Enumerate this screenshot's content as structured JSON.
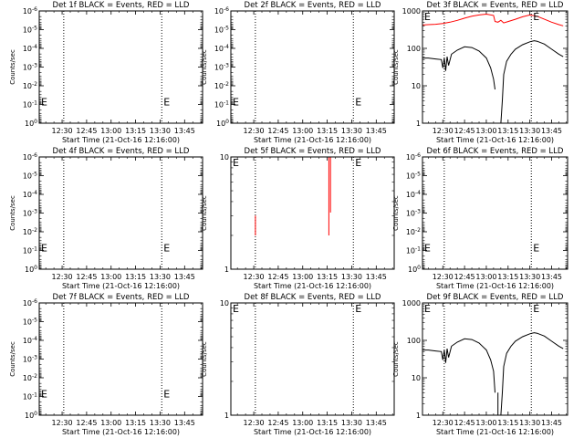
{
  "chart_data": [
    {
      "type": "line",
      "title": "Det 1f BLACK = Events, RED = LLD",
      "xlabel": "Start Time (21-Oct-16 12:16:00)",
      "ylabel": "Counts/sec",
      "log_y": true,
      "xlim": [
        "12:16",
        "13:56"
      ],
      "ylim": [
        1,
        1e-06
      ],
      "ytick_labels": [
        "10^0",
        "10^-1",
        "10^-2",
        "10^-3",
        "10^-4",
        "10^-5",
        "10^-6"
      ],
      "xtick_labels": [
        "12:30",
        "12:45",
        "13:00",
        "13:15",
        "13:30",
        "13:45"
      ],
      "vlines": [
        "12:31",
        "13:31"
      ],
      "markers": [
        {
          "text": "E",
          "x": "12:16",
          "y": 0.07
        },
        {
          "text": "E",
          "x": "13:31",
          "y": 0.07
        }
      ],
      "series": []
    },
    {
      "type": "line",
      "title": "Det 2f BLACK = Events, RED = LLD",
      "xlabel": "Start Time (21-Oct-16 12:16:00)",
      "ylabel": "Counts/sec",
      "log_y": true,
      "xlim": [
        "12:16",
        "13:56"
      ],
      "ylim": [
        1,
        1e-06
      ],
      "ytick_labels": [
        "10^0",
        "10^-1",
        "10^-2",
        "10^-3",
        "10^-4",
        "10^-5",
        "10^-6"
      ],
      "xtick_labels": [
        "12:30",
        "12:45",
        "13:00",
        "13:15",
        "13:30",
        "13:45"
      ],
      "vlines": [
        "12:31",
        "13:31"
      ],
      "markers": [
        {
          "text": "E",
          "x": "12:16",
          "y": 0.07
        },
        {
          "text": "E",
          "x": "13:31",
          "y": 0.07
        }
      ],
      "series": []
    },
    {
      "type": "line",
      "title": "Det 3f BLACK = Events, RED = LLD",
      "xlabel": "Start Time (21-Oct-16 12:16:00)",
      "ylabel": "Counts/sec",
      "log_y": true,
      "xlim": [
        "12:16",
        "13:56"
      ],
      "ylim": [
        1,
        1000
      ],
      "ytick_labels": [
        "1",
        "10",
        "100",
        "1000"
      ],
      "xtick_labels": [
        "12:30",
        "12:45",
        "13:00",
        "13:15",
        "13:30",
        "13:45"
      ],
      "vlines": [
        "12:31",
        "13:31"
      ],
      "markers": [
        {
          "text": "E",
          "x": "12:16",
          "y": 1000
        },
        {
          "text": "E",
          "x": "13:31",
          "y": 1000
        }
      ],
      "series": [
        {
          "color": "#ff0000",
          "segments": [
            {
              "x": [
                "12:16",
                "12:20",
                "12:25",
                "12:30",
                "12:35",
                "12:40",
                "12:45",
                "12:50",
                "12:55",
                "13:00",
                "13:05",
                "13:06",
                "13:08",
                "13:10",
                "13:12",
                "13:15",
                "13:20",
                "13:25",
                "13:30",
                "13:35",
                "13:40",
                "13:45",
                "13:50",
                "13:53"
              ],
              "y": [
                420,
                430,
                440,
                460,
                500,
                560,
                640,
                720,
                780,
                820,
                760,
                520,
                500,
                560,
                480,
                520,
                600,
                700,
                780,
                720,
                600,
                500,
                430,
                400
              ]
            }
          ]
        },
        {
          "color": "#000000",
          "segments": [
            {
              "x": [
                "12:16",
                "12:20",
                "12:25",
                "12:29",
                "12:30",
                "12:31",
                "12:32",
                "12:33",
                "12:34",
                "12:36",
                "12:40",
                "12:45",
                "12:50",
                "12:55",
                "13:00",
                "13:03",
                "13:05",
                "13:06"
              ],
              "y": [
                55,
                55,
                52,
                50,
                30,
                55,
                25,
                60,
                35,
                70,
                90,
                110,
                105,
                85,
                55,
                30,
                15,
                8
              ]
            },
            {
              "x": [
                "13:10",
                "13:11",
                "13:12",
                "13:14",
                "13:17",
                "13:20",
                "13:25",
                "13:30",
                "13:33",
                "13:35",
                "13:40",
                "13:45",
                "13:50",
                "13:53"
              ],
              "y": [
                1,
                4,
                20,
                45,
                70,
                95,
                125,
                150,
                160,
                155,
                130,
                95,
                70,
                60
              ]
            }
          ]
        }
      ]
    },
    {
      "type": "line",
      "title": "Det 4f BLACK = Events, RED = LLD",
      "xlabel": "Start Time (21-Oct-16 12:16:00)",
      "ylabel": "Counts/sec",
      "log_y": true,
      "xlim": [
        "12:16",
        "13:56"
      ],
      "ylim": [
        1,
        1e-06
      ],
      "ytick_labels": [
        "10^0",
        "10^-1",
        "10^-2",
        "10^-3",
        "10^-4",
        "10^-5",
        "10^-6"
      ],
      "xtick_labels": [
        "12:30",
        "12:45",
        "13:00",
        "13:15",
        "13:30",
        "13:45"
      ],
      "vlines": [
        "12:31",
        "13:31"
      ],
      "markers": [
        {
          "text": "E",
          "x": "12:16",
          "y": 0.07
        },
        {
          "text": "E",
          "x": "13:31",
          "y": 0.07
        }
      ],
      "series": []
    },
    {
      "type": "line",
      "title": "Det 5f BLACK = Events, RED = LLD",
      "xlabel": "Start Time (21-Oct-16 12:16:00)",
      "ylabel": "Counts/sec",
      "log_y": true,
      "xlim": [
        "12:16",
        "13:56"
      ],
      "ylim": [
        1,
        10
      ],
      "ytick_labels": [
        "1",
        "10"
      ],
      "xtick_labels": [
        "12:30",
        "12:45",
        "13:00",
        "13:15",
        "13:30",
        "13:45"
      ],
      "vlines": [
        "12:31",
        "13:31"
      ],
      "markers": [
        {
          "text": "E",
          "x": "12:16",
          "y": 10
        },
        {
          "text": "E",
          "x": "13:31",
          "y": 10
        }
      ],
      "series": [
        {
          "color": "#ff0000",
          "segments": [
            {
              "x": [
                "12:31",
                "12:31"
              ],
              "y": [
                2.0,
                3.0
              ]
            },
            {
              "x": [
                "13:16",
                "13:16"
              ],
              "y": [
                2.0,
                10
              ]
            },
            {
              "x": [
                "13:17",
                "13:17"
              ],
              "y": [
                3.2,
                10
              ]
            }
          ]
        }
      ]
    },
    {
      "type": "line",
      "title": "Det 6f BLACK = Events, RED = LLD",
      "xlabel": "Start Time (21-Oct-16 12:16:00)",
      "ylabel": "Counts/sec",
      "log_y": true,
      "xlim": [
        "12:16",
        "13:56"
      ],
      "ylim": [
        1,
        1e-06
      ],
      "ytick_labels": [
        "10^0",
        "10^-1",
        "10^-2",
        "10^-3",
        "10^-4",
        "10^-5",
        "10^-6"
      ],
      "xtick_labels": [
        "12:30",
        "12:45",
        "13:00",
        "13:15",
        "13:30",
        "13:45"
      ],
      "vlines": [
        "12:31",
        "13:31"
      ],
      "markers": [
        {
          "text": "E",
          "x": "12:16",
          "y": 0.07
        },
        {
          "text": "E",
          "x": "13:31",
          "y": 0.07
        }
      ],
      "series": []
    },
    {
      "type": "line",
      "title": "Det 7f BLACK = Events, RED = LLD",
      "xlabel": "Start Time (21-Oct-16 12:16:00)",
      "ylabel": "Counts/sec",
      "log_y": true,
      "xlim": [
        "12:16",
        "13:56"
      ],
      "ylim": [
        1,
        1e-06
      ],
      "ytick_labels": [
        "10^0",
        "10^-1",
        "10^-2",
        "10^-3",
        "10^-4",
        "10^-5",
        "10^-6"
      ],
      "xtick_labels": [
        "12:30",
        "12:45",
        "13:00",
        "13:15",
        "13:30",
        "13:45"
      ],
      "vlines": [
        "12:31",
        "13:31"
      ],
      "markers": [
        {
          "text": "E",
          "x": "12:16",
          "y": 0.07
        },
        {
          "text": "E",
          "x": "13:31",
          "y": 0.07
        }
      ],
      "series": []
    },
    {
      "type": "line",
      "title": "Det 8f BLACK = Events, RED = LLD",
      "xlabel": "Start Time (21-Oct-16 12:16:00)",
      "ylabel": "Counts/sec",
      "log_y": true,
      "xlim": [
        "12:16",
        "13:56"
      ],
      "ylim": [
        1,
        10
      ],
      "ytick_labels": [
        "1",
        "10"
      ],
      "xtick_labels": [
        "12:30",
        "12:45",
        "13:00",
        "13:15",
        "13:30",
        "13:45"
      ],
      "vlines": [
        "12:31",
        "13:31"
      ],
      "markers": [
        {
          "text": "E",
          "x": "12:16",
          "y": 10
        },
        {
          "text": "E",
          "x": "13:31",
          "y": 10
        }
      ],
      "series": []
    },
    {
      "type": "line",
      "title": "Det 9f BLACK = Events, RED = LLD",
      "xlabel": "Start Time (21-Oct-16 12:16:00)",
      "ylabel": "Counts/sec",
      "log_y": true,
      "xlim": [
        "12:16",
        "13:56"
      ],
      "ylim": [
        1,
        1000
      ],
      "ytick_labels": [
        "1",
        "10",
        "100",
        "1000"
      ],
      "xtick_labels": [
        "12:30",
        "12:45",
        "13:00",
        "13:15",
        "13:30",
        "13:45"
      ],
      "vlines": [
        "12:31",
        "13:31"
      ],
      "markers": [
        {
          "text": "E",
          "x": "12:16",
          "y": 1000
        },
        {
          "text": "E",
          "x": "13:31",
          "y": 1000
        }
      ],
      "series": [
        {
          "color": "#ff0000",
          "segments": [
            {
              "x": [
                "12:16",
                "12:25",
                "12:35",
                "12:45",
                "12:55",
                "13:05",
                "13:15",
                "13:25",
                "13:35",
                "13:45",
                "13:53"
              ],
              "y": [
                1000,
                1000,
                1000,
                1000,
                1000,
                1000,
                1000,
                1000,
                1000,
                1000,
                1000
              ]
            }
          ]
        },
        {
          "color": "#000000",
          "segments": [
            {
              "x": [
                "12:16",
                "12:20",
                "12:25",
                "12:29",
                "12:30",
                "12:31",
                "12:32",
                "12:33",
                "12:34",
                "12:36",
                "12:40",
                "12:45",
                "12:50",
                "12:55",
                "13:00",
                "13:03",
                "13:05",
                "13:06"
              ],
              "y": [
                55,
                55,
                52,
                50,
                30,
                55,
                25,
                60,
                35,
                70,
                90,
                110,
                105,
                85,
                55,
                30,
                15,
                4
              ]
            },
            {
              "x": [
                "13:06",
                "13:07",
                "13:08",
                "13:08"
              ],
              "y": [
                1,
                1,
                1,
                4
              ]
            },
            {
              "x": [
                "13:10",
                "13:11",
                "13:12",
                "13:14",
                "13:17",
                "13:20",
                "13:25",
                "13:30",
                "13:33",
                "13:35",
                "13:40",
                "13:45",
                "13:50",
                "13:53"
              ],
              "y": [
                1,
                4,
                20,
                45,
                70,
                95,
                125,
                150,
                160,
                155,
                130,
                95,
                70,
                60
              ]
            }
          ]
        }
      ]
    }
  ]
}
